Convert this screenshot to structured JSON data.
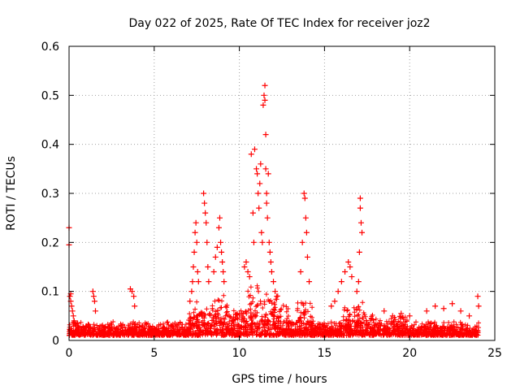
{
  "chart_data": {
    "type": "scatter",
    "title": "Day 022 of 2025, Rate Of TEC Index for receiver joz2",
    "xlabel": "GPS time / hours",
    "ylabel": "ROTI / TECUs",
    "xlim": [
      0,
      25
    ],
    "ylim": [
      0,
      0.6
    ],
    "xticks": [
      0,
      5,
      10,
      15,
      20,
      25
    ],
    "yticks": [
      0,
      0.1,
      0.2,
      0.3,
      0.4,
      0.5,
      0.6
    ],
    "xtick_labels": [
      "0",
      "5",
      "10",
      "15",
      "20",
      "25"
    ],
    "ytick_labels": [
      "0",
      "0.1",
      "0.2",
      "0.3",
      "0.4",
      "0.5",
      "0.6"
    ],
    "grid": true,
    "marker": "plus",
    "color": "#ff0000",
    "series": [
      {
        "x": [
          0.0,
          0.0,
          0.05,
          0.1,
          0.1,
          0.15,
          0.2,
          0.25,
          0.3,
          0.4,
          0.5,
          0.6,
          1.4,
          1.45,
          1.5,
          1.55,
          3.6,
          3.7,
          3.8,
          3.85,
          7.1,
          7.2,
          7.25,
          7.3,
          7.35,
          7.4,
          7.45,
          7.5,
          7.55,
          7.6,
          7.9,
          7.95,
          8.0,
          8.05,
          8.1,
          8.15,
          8.2,
          8.5,
          8.6,
          8.7,
          8.8,
          8.85,
          8.9,
          8.95,
          9.0,
          9.05,
          9.1,
          10.3,
          10.4,
          10.5,
          10.6,
          10.7,
          10.8,
          10.85,
          10.9,
          11.0,
          11.05,
          11.1,
          11.15,
          11.2,
          11.25,
          11.3,
          11.35,
          11.4,
          11.45,
          11.5,
          11.5,
          11.55,
          11.55,
          11.6,
          11.6,
          11.65,
          11.7,
          11.75,
          11.8,
          11.85,
          11.9,
          12.0,
          12.1,
          12.2,
          13.6,
          13.7,
          13.8,
          13.85,
          13.9,
          13.95,
          14.0,
          14.1,
          15.4,
          15.6,
          15.8,
          16.0,
          16.2,
          16.4,
          16.5,
          16.6,
          16.9,
          17.0,
          17.05,
          17.1,
          17.1,
          17.15,
          17.2,
          18.5,
          19.0,
          19.5,
          20.0,
          21.0,
          21.5,
          22.0,
          22.5,
          23.0,
          23.5,
          24.0,
          24.05
        ],
        "y": [
          0.23,
          0.195,
          0.09,
          0.08,
          0.095,
          0.07,
          0.06,
          0.05,
          0.04,
          0.03,
          0.035,
          0.025,
          0.1,
          0.09,
          0.08,
          0.06,
          0.105,
          0.1,
          0.09,
          0.07,
          0.08,
          0.1,
          0.12,
          0.15,
          0.18,
          0.22,
          0.24,
          0.2,
          0.14,
          0.12,
          0.3,
          0.28,
          0.26,
          0.24,
          0.2,
          0.15,
          0.12,
          0.14,
          0.17,
          0.19,
          0.23,
          0.25,
          0.2,
          0.18,
          0.16,
          0.14,
          0.12,
          0.15,
          0.16,
          0.14,
          0.13,
          0.38,
          0.26,
          0.2,
          0.39,
          0.35,
          0.34,
          0.3,
          0.27,
          0.32,
          0.36,
          0.22,
          0.2,
          0.48,
          0.5,
          0.52,
          0.49,
          0.42,
          0.35,
          0.3,
          0.28,
          0.25,
          0.34,
          0.2,
          0.18,
          0.16,
          0.14,
          0.12,
          0.1,
          0.09,
          0.14,
          0.2,
          0.3,
          0.29,
          0.25,
          0.22,
          0.17,
          0.12,
          0.07,
          0.08,
          0.1,
          0.12,
          0.14,
          0.16,
          0.15,
          0.13,
          0.1,
          0.12,
          0.18,
          0.29,
          0.27,
          0.24,
          0.22,
          0.06,
          0.05,
          0.055,
          0.05,
          0.06,
          0.07,
          0.065,
          0.075,
          0.06,
          0.05,
          0.09,
          0.07
        ]
      }
    ]
  }
}
